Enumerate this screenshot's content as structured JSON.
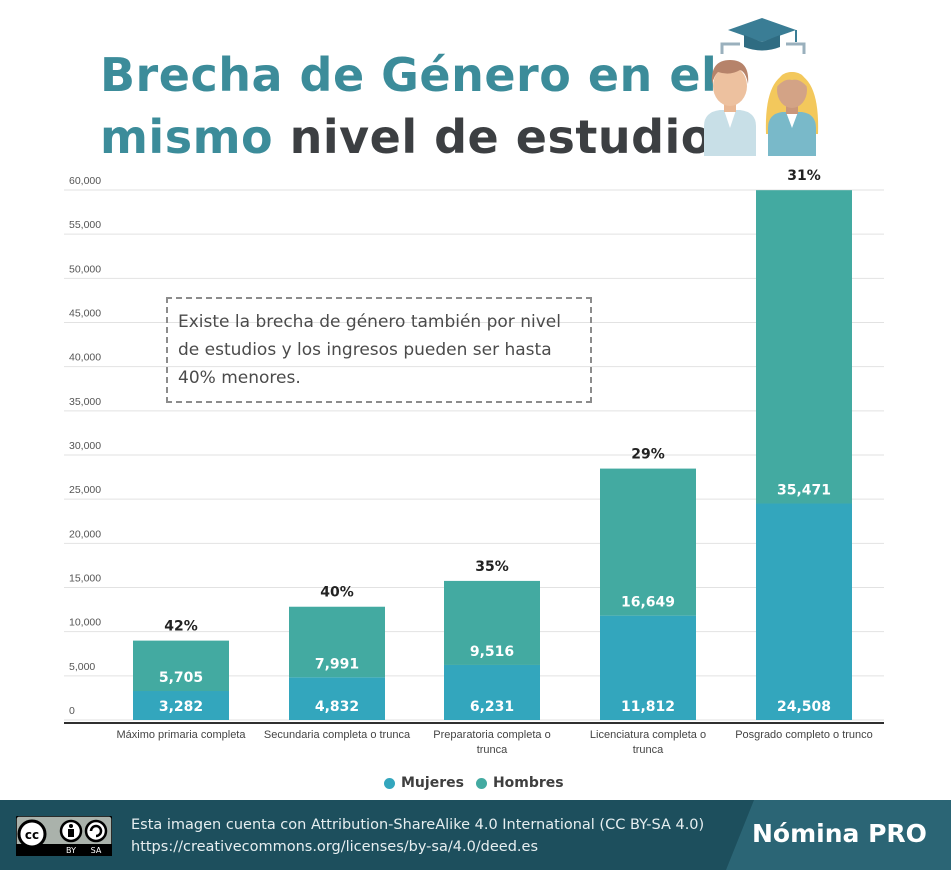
{
  "title": {
    "line1": "Brecha de Género en el",
    "line2_teal": "mismo",
    "line2_dark": " nivel de estudios"
  },
  "note": "Existe la brecha de género también por nivel de estudios y los ingresos pueden ser hasta 40% menores.",
  "colors": {
    "mujeres": "#33a6bd",
    "hombres": "#43aaa1",
    "grid": "#e2e2e2",
    "title_teal": "#3c8c9a",
    "footer": "#1d4f5d"
  },
  "legend": [
    {
      "name": "Mujeres",
      "color": "#33a6bd"
    },
    {
      "name": "Hombres",
      "color": "#43aaa1"
    }
  ],
  "chart_data": {
    "type": "bar",
    "stacked": true,
    "categories": [
      [
        "Máximo primaria completa"
      ],
      [
        "Secundaria completa o trunca"
      ],
      [
        "Preparatoria completa o",
        "trunca"
      ],
      [
        "Licenciatura completa o",
        "trunca"
      ],
      [
        "Posgrado completo o trunco"
      ]
    ],
    "series": [
      {
        "name": "Mujeres",
        "values": [
          3282,
          4832,
          6231,
          11812,
          24508
        ],
        "labels": [
          "3,282",
          "4,832",
          "6,231",
          "11,812",
          "24,508"
        ]
      },
      {
        "name": "Hombres",
        "values": [
          5705,
          7991,
          9516,
          16649,
          35471
        ],
        "labels": [
          "5,705",
          "7,991",
          "9,516",
          "16,649",
          "35,471"
        ]
      }
    ],
    "gap_labels": [
      "42%",
      "40%",
      "35%",
      "29%",
      "31%"
    ],
    "ylim": [
      0,
      60000
    ],
    "yticks": [
      0,
      5000,
      10000,
      15000,
      20000,
      25000,
      30000,
      35000,
      40000,
      45000,
      50000,
      55000,
      60000
    ],
    "ytick_labels": [
      "0",
      "5,000",
      "10,000",
      "15,000",
      "20,000",
      "25,000",
      "30,000",
      "35,000",
      "40,000",
      "45,000",
      "50,000",
      "55,000",
      "60,000"
    ],
    "grid": true,
    "legend_position": "bottom"
  },
  "footer": {
    "license_line1": "Esta imagen cuenta con Attribution-ShareAlike 4.0 International (CC BY-SA 4.0)",
    "license_line2": "https://creativecommons.org/licenses/by-sa/4.0/deed.es",
    "badge_by": "BY",
    "badge_sa": "SA",
    "brand": "Nómina PRO"
  }
}
